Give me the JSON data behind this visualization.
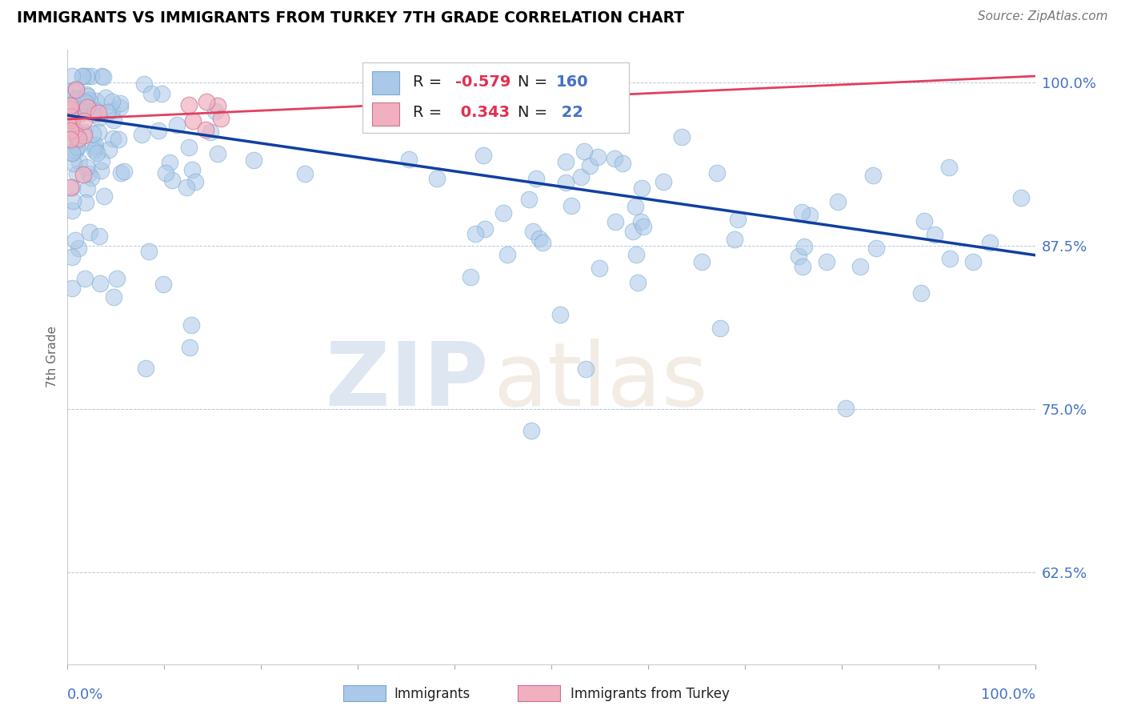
{
  "title": "IMMIGRANTS VS IMMIGRANTS FROM TURKEY 7TH GRADE CORRELATION CHART",
  "source": "Source: ZipAtlas.com",
  "ylabel": "7th Grade",
  "y_tick_labels": [
    "62.5%",
    "75.0%",
    "87.5%",
    "100.0%"
  ],
  "y_tick_values": [
    0.625,
    0.75,
    0.875,
    1.0
  ],
  "x_range": [
    0.0,
    1.0
  ],
  "y_range": [
    0.555,
    1.025
  ],
  "blue_R": "-0.579",
  "blue_N": "160",
  "pink_R": "0.343",
  "pink_N": "22",
  "blue_color": "#aac8e8",
  "pink_color": "#f0b0c0",
  "blue_line_color": "#1040a0",
  "pink_line_color": "#e04060",
  "legend_blue_label": "Immigrants",
  "legend_pink_label": "Immigrants from Turkey",
  "blue_line_x0": 0.0,
  "blue_line_y0": 0.975,
  "blue_line_x1": 1.0,
  "blue_line_y1": 0.868,
  "pink_line_x0": 0.0,
  "pink_line_y0": 0.972,
  "pink_line_x1": 1.0,
  "pink_line_y1": 1.005
}
